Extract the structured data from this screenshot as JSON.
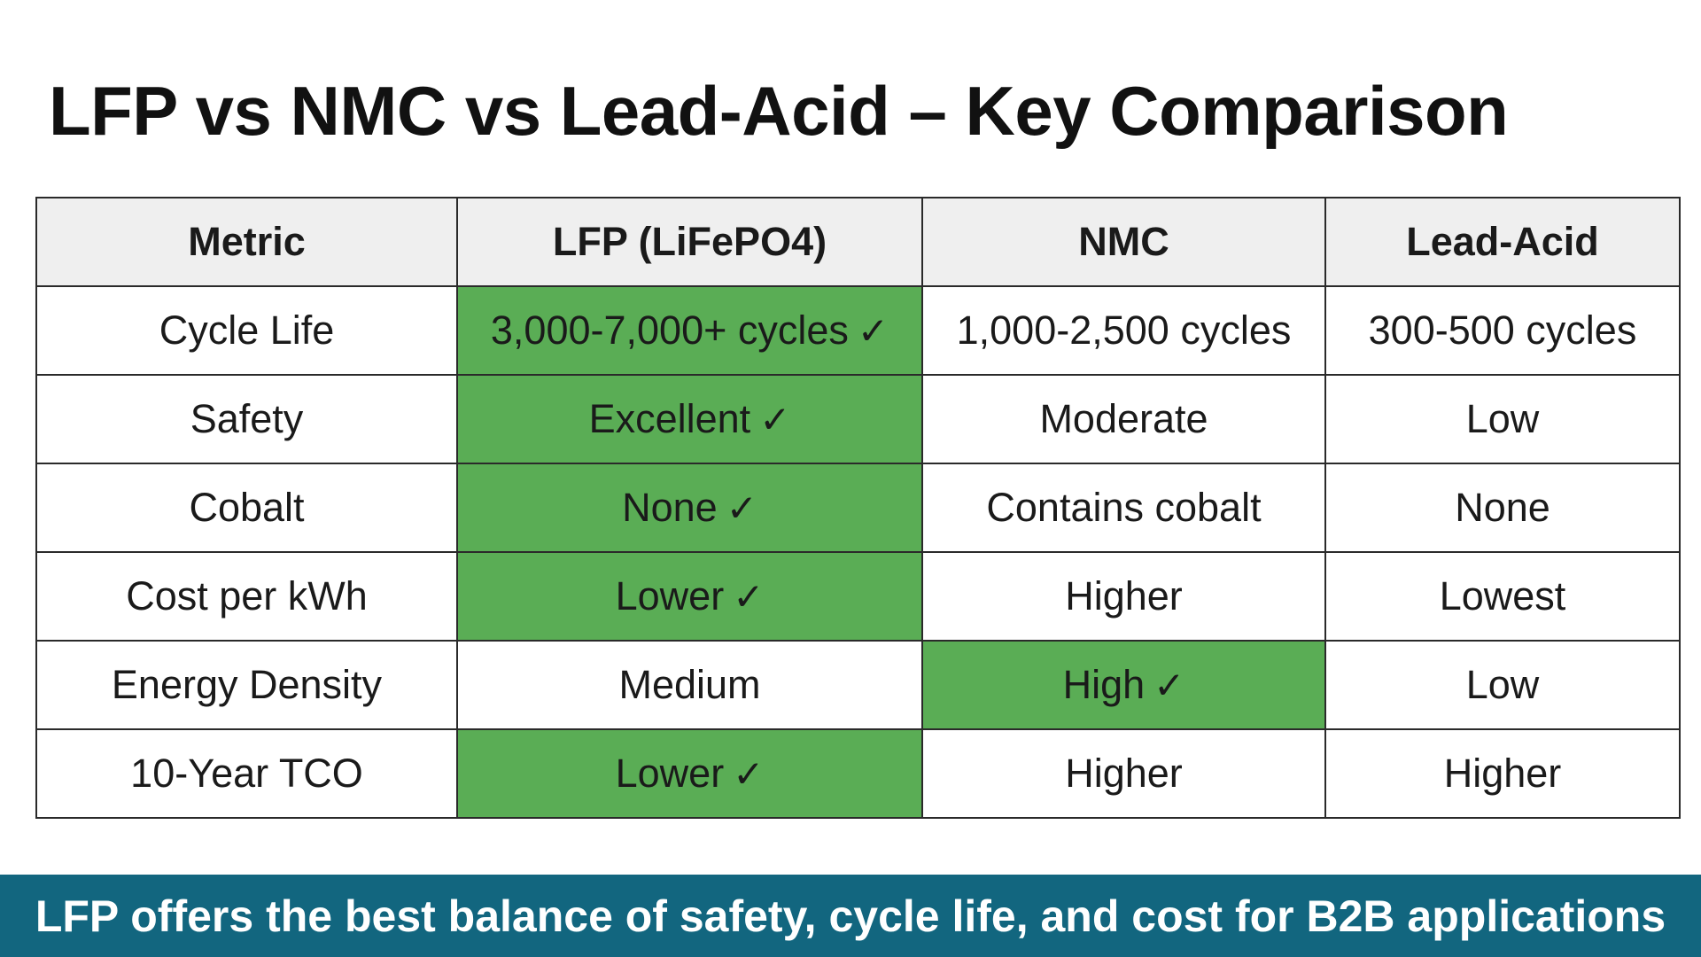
{
  "title": "LFP vs NMC vs Lead-Acid – Key Comparison",
  "colors": {
    "best_highlight": "#5aad55",
    "banner_background": "#12667f",
    "header_background": "#efefef"
  },
  "icons": {
    "best_marker": "checkmark-icon",
    "best_glyph": "✓"
  },
  "table": {
    "headers": [
      "Metric",
      "LFP (LiFePO4)",
      "NMC",
      "Lead-Acid"
    ],
    "rows": [
      {
        "metric": "Cycle Life",
        "cells": [
          {
            "text": "3,000-7,000+ cycles",
            "best": true
          },
          {
            "text": "1,000-2,500 cycles",
            "best": false
          },
          {
            "text": "300-500 cycles",
            "best": false
          }
        ]
      },
      {
        "metric": "Safety",
        "cells": [
          {
            "text": "Excellent",
            "best": true
          },
          {
            "text": "Moderate",
            "best": false
          },
          {
            "text": "Low",
            "best": false
          }
        ]
      },
      {
        "metric": "Cobalt",
        "cells": [
          {
            "text": "None",
            "best": true
          },
          {
            "text": "Contains cobalt",
            "best": false
          },
          {
            "text": "None",
            "best": false
          }
        ]
      },
      {
        "metric": "Cost per kWh",
        "cells": [
          {
            "text": "Lower",
            "best": true
          },
          {
            "text": "Higher",
            "best": false
          },
          {
            "text": "Lowest",
            "best": false
          }
        ]
      },
      {
        "metric": "Energy Density",
        "cells": [
          {
            "text": "Medium",
            "best": false
          },
          {
            "text": "High",
            "best": true
          },
          {
            "text": "Low",
            "best": false
          }
        ]
      },
      {
        "metric": "10-Year TCO",
        "cells": [
          {
            "text": "Lower",
            "best": true
          },
          {
            "text": "Higher",
            "best": false
          },
          {
            "text": "Higher",
            "best": false
          }
        ]
      }
    ]
  },
  "banner": {
    "text": "LFP offers the best balance of safety, cycle life, and cost for B2B applications"
  }
}
